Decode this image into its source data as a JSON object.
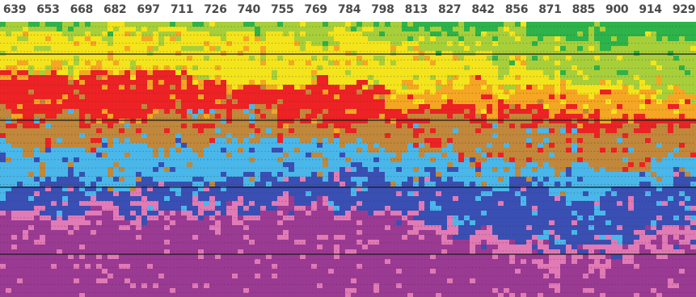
{
  "chart_data": {
    "type": "heatmap",
    "x_ticks": [
      639,
      653,
      668,
      682,
      697,
      711,
      726,
      740,
      755,
      769,
      784,
      798,
      813,
      827,
      842,
      856,
      871,
      885,
      900,
      914,
      929
    ],
    "x_range": [
      639,
      936
    ],
    "colors": {
      "green": "#2db34a",
      "light_green": "#a7cf3a",
      "yellow": "#f4e41b",
      "orange": "#f5a623",
      "red": "#ec2224",
      "brown": "#c1873a",
      "light_blue": "#49b7ea",
      "blue": "#3a4fb3",
      "pink": "#e17ab5",
      "purple": "#9b3a93"
    },
    "color_order": [
      "green",
      "light_green",
      "yellow",
      "orange",
      "red",
      "brown",
      "light_blue",
      "blue",
      "pink",
      "purple"
    ],
    "grid": "dotted horizontal lines with four solid horizontal rules"
  }
}
